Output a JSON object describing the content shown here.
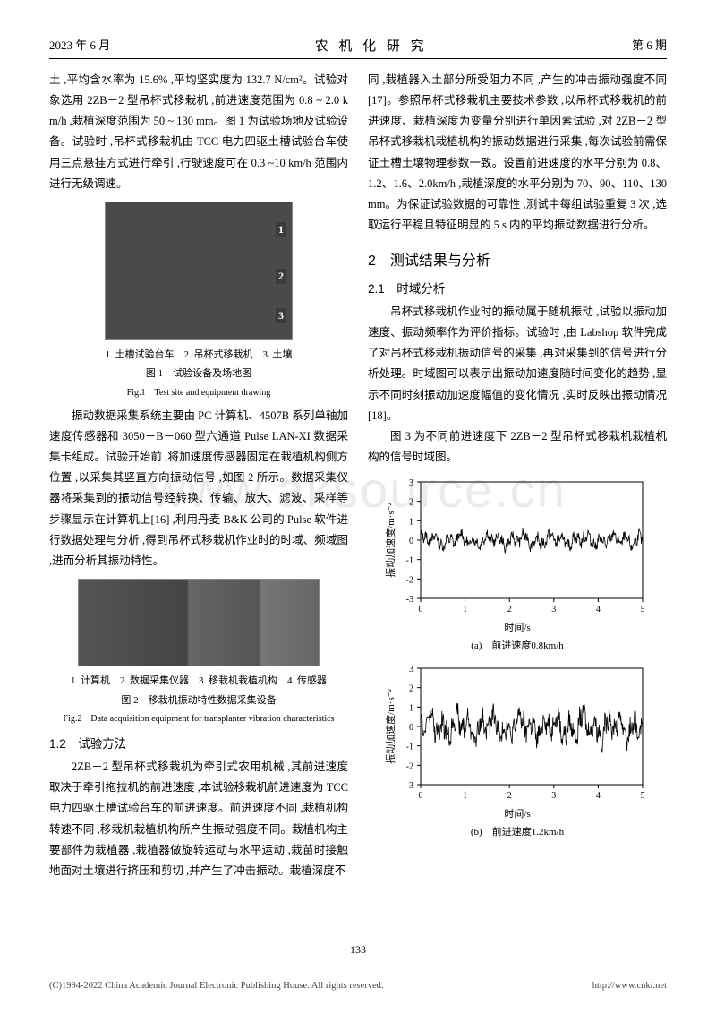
{
  "header": {
    "left": "2023 年 6 月",
    "center": "农 机 化 研 究",
    "right": "第 6 期"
  },
  "col1": {
    "p1": "土 ,平均含水率为 15.6% ,平均坚实度为 132.7 N/cm²。试验对象选用 2ZB－2 型吊杯式移栽机 ,前进速度范围为 0.8 ~ 2.0 km/h ,栽植深度范围为 50 ~ 130 mm。图 1 为试验场地及试验设备。试验时 ,吊杯式移栽机由 TCC 电力四驱土槽试验台车使用三点悬挂方式进行牵引 ,行驶速度可在 0.3 ~10 km/h 范围内进行无级调速。",
    "fig1": {
      "legend": "1. 土槽试验台车　2. 吊杯式移栽机　3. 土壤",
      "caption_cn": "图 1　试验设备及场地图",
      "caption_en": "Fig.1　Test site and equipment drawing",
      "labels": [
        "1",
        "2",
        "3"
      ]
    },
    "p2": "振动数据采集系统主要由 PC 计算机、4507B 系列单轴加速度传感器和 3050－B－060 型六通道 Pulse LAN-XI 数据采集卡组成。试验开始前 ,将加速度传感器固定在栽植机构侧方位置 ,以采集其竖直方向振动信号 ,如图 2 所示。数据采集仪器将采集到的振动信号经转换、传输、放大、滤波、采样等步骤显示在计算机上[16] ,利用丹麦 B&K 公司的 Pulse 软件进行数据处理与分析 ,得到吊杯式移栽机作业时的时域、频域图 ,进而分析其振动特性。",
    "fig2": {
      "legend": "1. 计算机　2. 数据采集仪器　3. 移栽机栽植机构　4. 传感器",
      "caption_cn": "图 2　移栽机振动特性数据采集设备",
      "caption_en": "Fig.2　Data acquisition equipment for transplanter vibration characteristics"
    },
    "sec12_title": "1.2　试验方法",
    "p3": "2ZB－2 型吊杯式移栽机为牵引式农用机械 ,其前进速度取决于牵引拖拉机的前进速度 ,本试验移栽机前进速度为 TCC 电力四驱土槽试验台车的前进速度。前进速度不同 ,栽植机构转速不同 ,移栽机栽植机构所产生振动强度不同。栽植机构主要部件为栽植器 ,栽植器做旋转运动与水平运动 ,栽苗时接触地面对土壤进行挤压和剪切 ,并产生了冲击振动。栽植深度不"
  },
  "col2": {
    "p1": "同 ,栽植器入土部分所受阻力不同 ,产生的冲击振动强度不同[17]。参照吊杯式移栽机主要技术参数 ,以吊杯式移栽机的前进速度、栽植深度为变量分别进行单因素试验 ,对 2ZB－2 型吊杯式移栽机栽植机构的振动数据进行采集 ,每次试验前需保证土槽土壤物理参数一致。设置前进速度的水平分别为 0.8、1.2、1.6、2.0km/h ,栽植深度的水平分别为 70、90、110、130mm。为保证试验数据的可靠性 ,测试中每组试验重复 3 次 ,选取运行平稳且特征明显的 5 s 内的平均振动数据进行分析。",
    "sec2_title": "2　测试结果与分析",
    "sec21_title": "2.1　时域分析",
    "p2": "吊杯式移栽机作业时的振动属于随机振动 ,试验以振动加速度、振动频率作为评价指标。试验时 ,由 Labshop 软件完成了对吊杯式移栽机振动信号的采集 ,再对采集到的信号进行分析处理。时域图可以表示出振动加速度随时间变化的趋势 ,显示不同时刻振动加速度幅值的变化情况 ,实时反映出振动情况[18]。",
    "p3": "图 3 为不同前进速度下 2ZB－2 型吊杯式移栽机栽植机构的信号时域图。",
    "chartA": {
      "type": "line",
      "ylabel": "振动加速度/m·s⁻²",
      "xlabel": "时间/s",
      "subtitle": "(a)　前进速度0.8km/h",
      "xlim": [
        0,
        5
      ],
      "ylim": [
        -3,
        3
      ],
      "xticks": [
        0,
        1,
        2,
        3,
        4,
        5
      ],
      "yticks": [
        -3,
        -2,
        -1,
        0,
        1,
        2,
        3
      ],
      "bg": "#ffffff",
      "line": "#000000",
      "amplitude": 0.45,
      "noise": 0.25
    },
    "chartB": {
      "type": "line",
      "ylabel": "振动加速度/m·s⁻²",
      "xlabel": "时间/s",
      "subtitle": "(b)　前进速度1.2km/h",
      "xlim": [
        0,
        5
      ],
      "ylim": [
        -3,
        3
      ],
      "xticks": [
        0,
        1,
        2,
        3,
        4,
        5
      ],
      "yticks": [
        -3,
        -2,
        -1,
        0,
        1,
        2,
        3
      ],
      "bg": "#ffffff",
      "line": "#000000",
      "amplitude": 0.9,
      "noise": 0.5
    }
  },
  "watermark": "www.aksource.cn",
  "page_num": "· 133 ·",
  "footer": {
    "left": "(C)1994-2022 China Academic Journal Electronic Publishing House. All rights reserved.",
    "right": "http://www.cnki.net"
  }
}
